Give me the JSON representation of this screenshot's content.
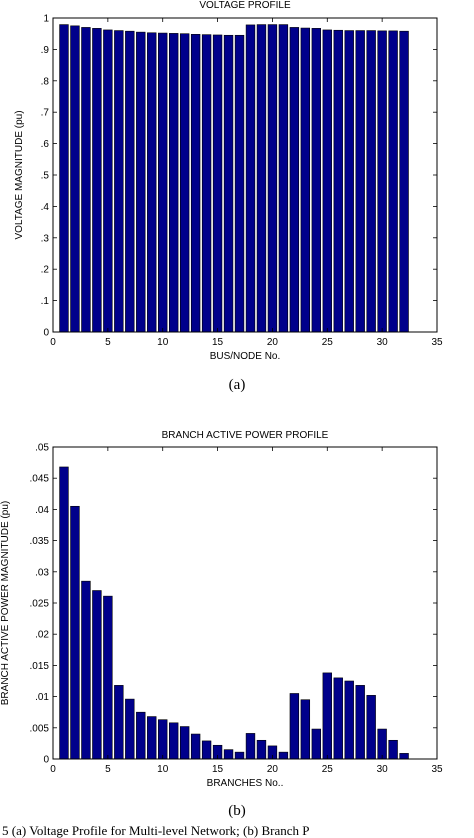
{
  "chart_data": [
    {
      "type": "bar",
      "title": "VOLTAGE PROFILE",
      "xlabel": "BUS/NODE No.",
      "ylabel": "VOLTAGE MAGNITUDE (pu)",
      "xlim": [
        0,
        35
      ],
      "ylim": [
        0,
        1
      ],
      "xticks": [
        0,
        5,
        10,
        15,
        20,
        25,
        30,
        35
      ],
      "yticks": [
        0,
        0.1,
        0.2,
        0.3,
        0.4,
        0.5,
        0.6,
        0.7,
        0.8,
        0.9,
        1
      ],
      "bar_color": "#00008B",
      "x": [
        1,
        2,
        3,
        4,
        5,
        6,
        7,
        8,
        9,
        10,
        11,
        12,
        13,
        14,
        15,
        16,
        17,
        18,
        19,
        20,
        21,
        22,
        23,
        24,
        25,
        26,
        27,
        28,
        29,
        30,
        31,
        32
      ],
      "values": [
        0.979,
        0.975,
        0.97,
        0.967,
        0.962,
        0.96,
        0.958,
        0.955,
        0.953,
        0.952,
        0.951,
        0.95,
        0.948,
        0.947,
        0.946,
        0.945,
        0.945,
        0.978,
        0.979,
        0.979,
        0.979,
        0.97,
        0.968,
        0.967,
        0.962,
        0.961,
        0.96,
        0.96,
        0.96,
        0.959,
        0.959,
        0.958
      ],
      "subfigure_label": "(a)"
    },
    {
      "type": "bar",
      "title": "BRANCH ACTIVE POWER PROFILE",
      "xlabel": "BRANCHES No..",
      "ylabel": "BRANCH ACTIVE POWER MAGNITUDE (pu)",
      "xlim": [
        0,
        35
      ],
      "ylim": [
        0,
        0.05
      ],
      "xticks": [
        0,
        5,
        10,
        15,
        20,
        25,
        30,
        35
      ],
      "yticks": [
        0,
        0.005,
        0.01,
        0.015,
        0.02,
        0.025,
        0.03,
        0.035,
        0.04,
        0.045,
        0.05
      ],
      "bar_color": "#00008B",
      "x": [
        1,
        2,
        3,
        4,
        5,
        6,
        7,
        8,
        9,
        10,
        11,
        12,
        13,
        14,
        15,
        16,
        17,
        18,
        19,
        20,
        21,
        22,
        23,
        24,
        25,
        26,
        27,
        28,
        29,
        30,
        31,
        32
      ],
      "values": [
        0.0468,
        0.0405,
        0.0285,
        0.027,
        0.0261,
        0.0118,
        0.0096,
        0.0075,
        0.0068,
        0.0063,
        0.0058,
        0.0052,
        0.004,
        0.0029,
        0.0022,
        0.0015,
        0.0011,
        0.0041,
        0.003,
        0.0021,
        0.0011,
        0.0105,
        0.0095,
        0.0048,
        0.0138,
        0.013,
        0.0125,
        0.0118,
        0.0102,
        0.0048,
        0.003,
        0.0009
      ],
      "subfigure_label": "(b)"
    }
  ],
  "caption": "5 (a) Voltage Profile for Multi-level Network; (b) Branch P"
}
